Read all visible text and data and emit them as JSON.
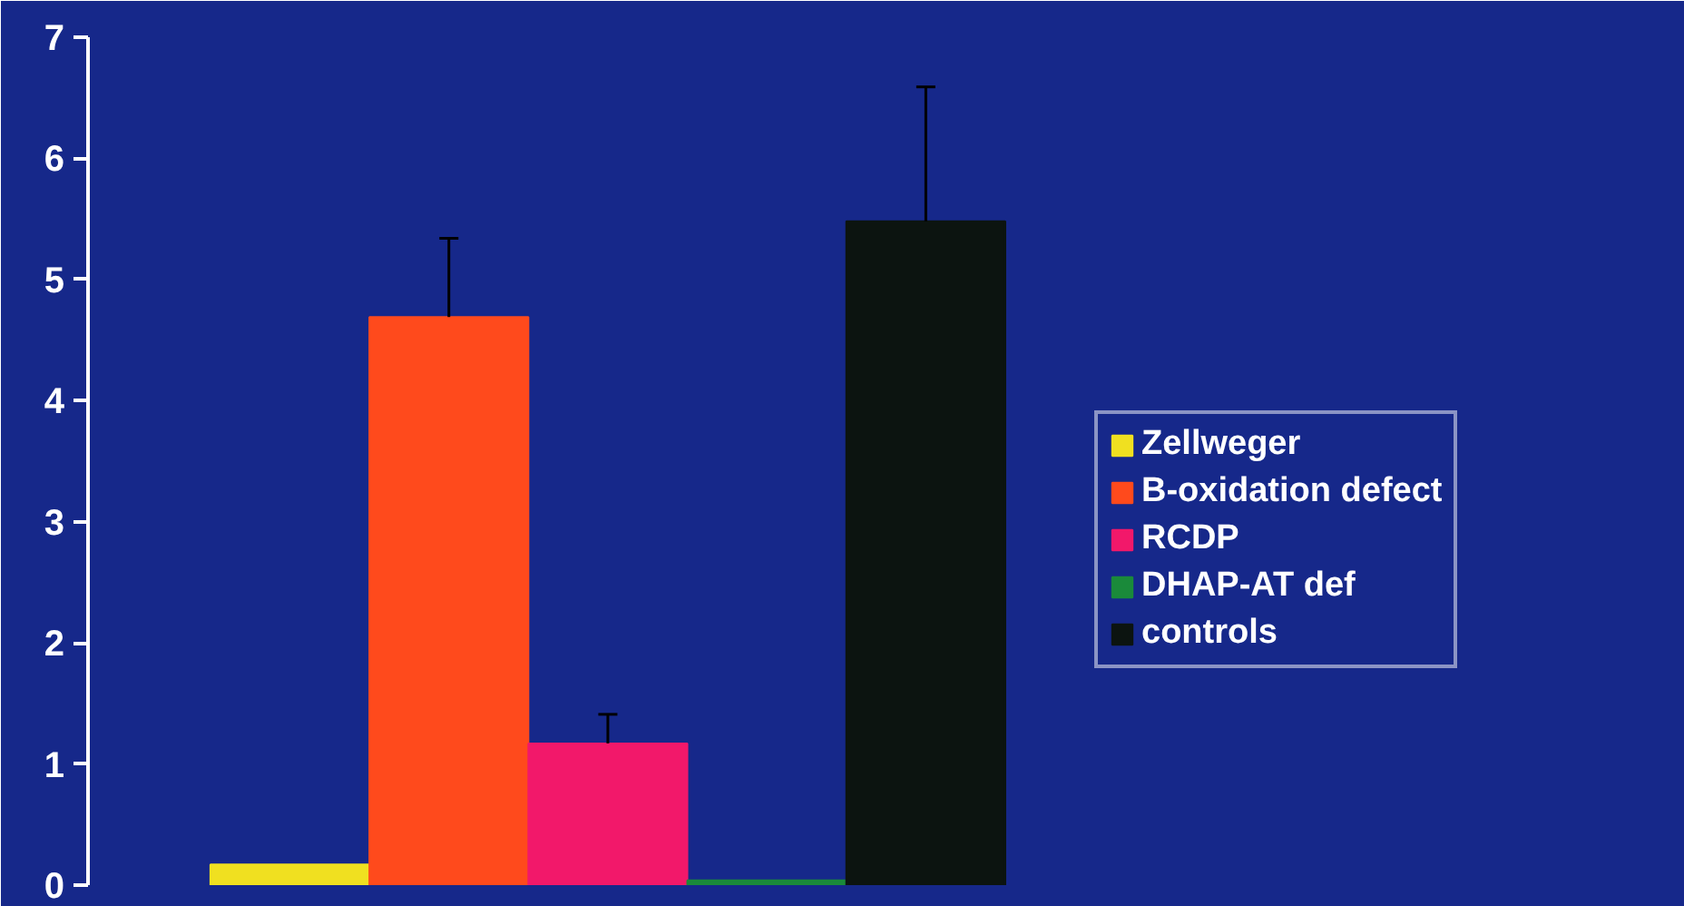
{
  "chart_data": {
    "type": "bar",
    "categories": [
      null
    ],
    "series": [
      {
        "name": "Zellweger",
        "color": "#f0e020",
        "values": [
          0.17
        ]
      },
      {
        "name": "B-oxidation defect",
        "color": "#ff4a1c",
        "values": [
          4.69
        ],
        "errors": [
          [
            4.69,
            5.34
          ]
        ]
      },
      {
        "name": "RCDP",
        "color": "#f2186a",
        "values": [
          1.17
        ],
        "errors": [
          [
            1.17,
            1.41
          ]
        ]
      },
      {
        "name": "DHAP-AT def",
        "color": "#1a8a3a",
        "values": [
          0.04
        ]
      },
      {
        "name": "controls",
        "color": "#0c1410",
        "values": [
          5.48
        ],
        "errors": [
          [
            5.48,
            6.59
          ]
        ]
      }
    ],
    "ylim": [
      0,
      7
    ],
    "yticks": [
      0,
      1,
      2,
      3,
      4,
      5,
      6,
      7
    ],
    "grid": false,
    "legend": "right"
  }
}
